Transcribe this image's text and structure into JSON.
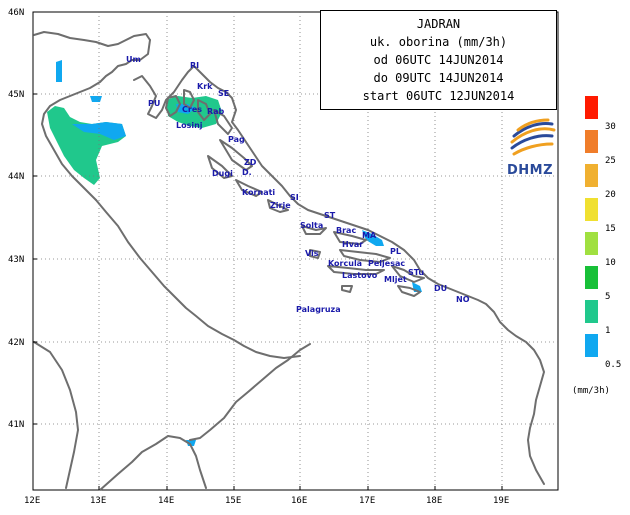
{
  "title": {
    "line1": "JADRAN",
    "line2": "uk. oborina (mm/3h)",
    "line3": "od 06UTC 14JUN2014",
    "line4": "do 09UTC 14JUN2014",
    "line5": "start 06UTC 12JUN2014"
  },
  "logo_text": "DHMZ",
  "latitude_labels": [
    "46N",
    "45N",
    "44N",
    "43N",
    "42N",
    "41N"
  ],
  "longitude_labels": [
    "12E",
    "13E",
    "14E",
    "15E",
    "16E",
    "17E",
    "18E",
    "19E"
  ],
  "place_labels": [
    {
      "id": "um",
      "text": "Um"
    },
    {
      "id": "ri",
      "text": "RI"
    },
    {
      "id": "krk",
      "text": "Krk"
    },
    {
      "id": "se",
      "text": "SE"
    },
    {
      "id": "pu",
      "text": "PU"
    },
    {
      "id": "cres",
      "text": "Cres"
    },
    {
      "id": "rab",
      "text": "Rab"
    },
    {
      "id": "losinj",
      "text": "Losinj"
    },
    {
      "id": "pag",
      "text": "Pag"
    },
    {
      "id": "zd",
      "text": "ZD"
    },
    {
      "id": "dugi",
      "text": "Dugi"
    },
    {
      "id": "d",
      "text": "D."
    },
    {
      "id": "kornati",
      "text": "Kornati"
    },
    {
      "id": "si",
      "text": "SI"
    },
    {
      "id": "zirje",
      "text": "Zirje"
    },
    {
      "id": "st",
      "text": "ST"
    },
    {
      "id": "solta",
      "text": "Solta"
    },
    {
      "id": "brac",
      "text": "Brac"
    },
    {
      "id": "ma",
      "text": "MA"
    },
    {
      "id": "pl",
      "text": "PL"
    },
    {
      "id": "hvar",
      "text": "Hvar"
    },
    {
      "id": "vis",
      "text": "Vis"
    },
    {
      "id": "korcula",
      "text": "Korcula"
    },
    {
      "id": "peljesac",
      "text": "Peljesac"
    },
    {
      "id": "lastovo",
      "text": "Lastovo"
    },
    {
      "id": "stu",
      "text": "STu"
    },
    {
      "id": "mljet",
      "text": "Mljet"
    },
    {
      "id": "du",
      "text": "DU"
    },
    {
      "id": "no",
      "text": "NO"
    },
    {
      "id": "palagruza",
      "text": "Palagruza"
    }
  ],
  "legend": {
    "unit": "(mm/3h)",
    "ticks": [
      "30",
      "25",
      "20",
      "15",
      "10",
      "5",
      "1",
      "0.5"
    ],
    "colors": [
      "#ff1a00",
      "#f07d2a",
      "#f0b030",
      "#f0e030",
      "#a0e040",
      "#18c038",
      "#20c88c",
      "#10a8f0"
    ]
  },
  "precip_colors": {
    "light": "#20c88c",
    "trace": "#10a8f0"
  }
}
